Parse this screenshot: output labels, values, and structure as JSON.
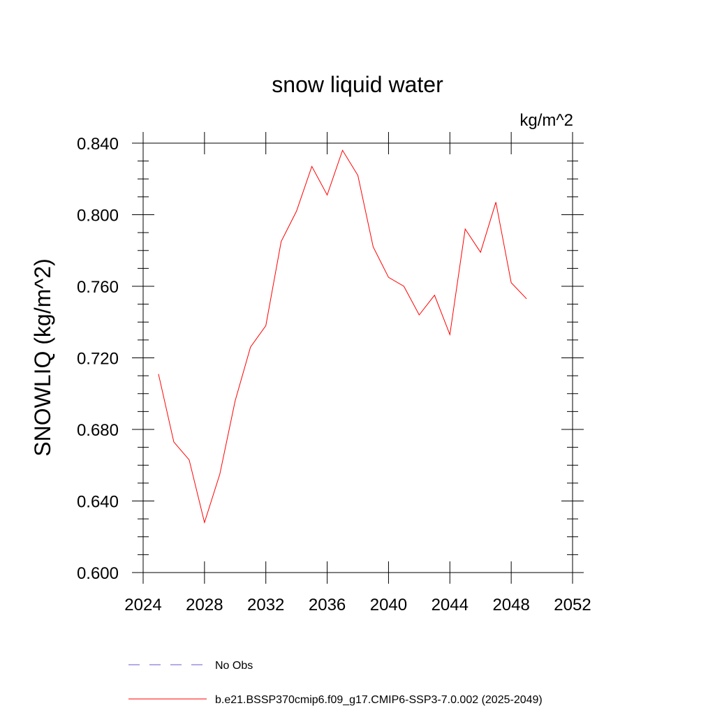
{
  "chart_data": {
    "type": "line",
    "title": "snow liquid water",
    "units_label": "kg/m^2",
    "ylabel": "SNOWLIQ  (kg/m^2)",
    "xlabel": "",
    "xlim": [
      2024,
      2052
    ],
    "ylim": [
      0.6,
      0.84
    ],
    "x_ticks": [
      2024,
      2028,
      2032,
      2036,
      2040,
      2044,
      2048,
      2052
    ],
    "x_tick_labels": [
      "2024",
      "2028",
      "2032",
      "2036",
      "2040",
      "2044",
      "2048",
      "2052"
    ],
    "y_ticks": [
      0.6,
      0.64,
      0.68,
      0.72,
      0.76,
      0.8,
      0.84
    ],
    "y_tick_labels": [
      "0.600",
      "0.640",
      "0.680",
      "0.720",
      "0.760",
      "0.800",
      "0.840"
    ],
    "grid": false,
    "legend_position": "bottom",
    "series": [
      {
        "name": "No Obs",
        "color": "#6a5acd",
        "dash": "dashed",
        "x": [],
        "y": []
      },
      {
        "name": "b.e21.BSSP370cmip6.f09_g17.CMIP6-SSP3-7.0.002 (2025-2049)",
        "color": "#ff0000",
        "dash": "solid",
        "x": [
          2025,
          2026,
          2027,
          2028,
          2029,
          2030,
          2031,
          2032,
          2033,
          2034,
          2035,
          2036,
          2037,
          2038,
          2039,
          2040,
          2041,
          2042,
          2043,
          2044,
          2045,
          2046,
          2047,
          2048,
          2049
        ],
        "y": [
          0.711,
          0.673,
          0.663,
          0.628,
          0.655,
          0.696,
          0.726,
          0.738,
          0.785,
          0.802,
          0.827,
          0.811,
          0.836,
          0.822,
          0.782,
          0.765,
          0.76,
          0.744,
          0.755,
          0.733,
          0.792,
          0.779,
          0.807,
          0.762,
          0.753
        ]
      }
    ]
  }
}
